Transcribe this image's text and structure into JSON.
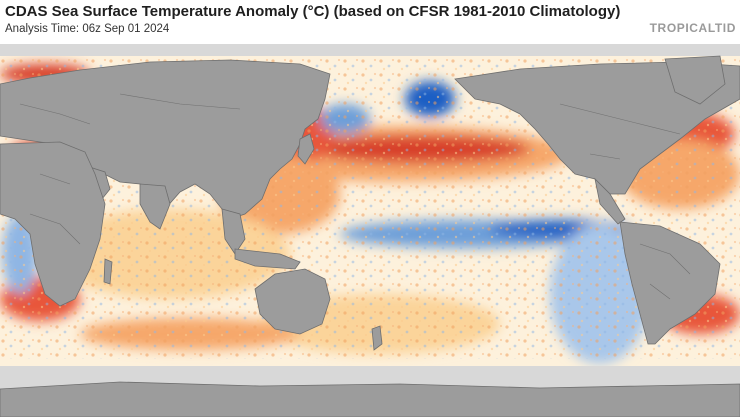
{
  "title": "CDAS Sea Surface Temperature Anomaly (°C) (based on CFSR 1981-2010 Climatology)",
  "subtitle": "Analysis Time: 06z Sep 01 2024",
  "brand": "TROPICALTID",
  "colors": {
    "land": "#9c9c9c",
    "ice": "#d8d8d8",
    "ocean_neutral": "#fdf6e6",
    "warm_light": "#fbd49a",
    "warm": "#f6a76a",
    "warm_strong": "#e8563a",
    "hot": "#c0271e",
    "cool_light": "#bcd6ef",
    "cool": "#6d9fd9",
    "cool_strong": "#1f5fc4"
  }
}
